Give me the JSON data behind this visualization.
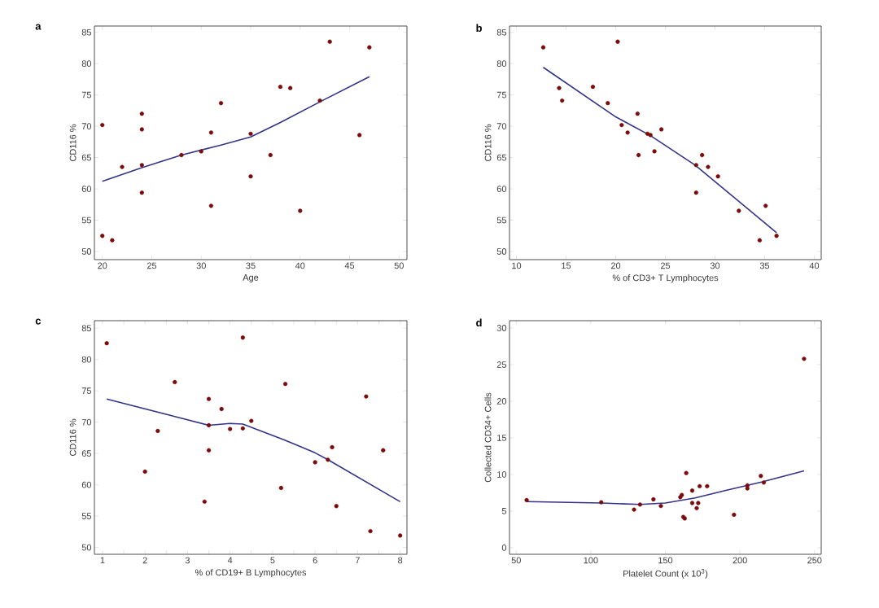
{
  "chart_data": [
    {
      "type": "scatter",
      "title": "a",
      "xlabel": "Age",
      "ylabel": "CD116 %",
      "xlim": [
        19.2,
        50.8
      ],
      "ylim": [
        48.7,
        86
      ],
      "xticks": [
        20,
        25,
        30,
        35,
        40,
        45,
        50
      ],
      "yticks": [
        50,
        55,
        60,
        65,
        70,
        75,
        80,
        85
      ],
      "marker": "circle",
      "series": [
        {
          "color": "#7a0c0c",
          "x": [
            20,
            20,
            21,
            22,
            24,
            24,
            24,
            24,
            28,
            30,
            31,
            31,
            32,
            35,
            35,
            37,
            38,
            39,
            40,
            42,
            43,
            46,
            47
          ],
          "values": [
            70.2,
            52.5,
            51.8,
            63.5,
            72,
            69.5,
            63.8,
            59.4,
            65.4,
            66,
            69,
            57.3,
            73.7,
            68.8,
            62,
            65.4,
            76.3,
            76.1,
            56.5,
            74.1,
            83.5,
            68.6,
            82.6
          ]
        },
        {
          "type": "line",
          "marker": "none",
          "color": "#33338a",
          "x": [
            20,
            24,
            28,
            32,
            35,
            38,
            42,
            47
          ],
          "values": [
            61.2,
            63.4,
            65.4,
            67,
            68.3,
            70.6,
            73.9,
            77.9
          ]
        }
      ]
    },
    {
      "type": "scatter",
      "title": "b",
      "xlabel": "% of CD3+ T Lymphocytes",
      "ylabel": "CD116 %",
      "xlim": [
        9.3,
        40.7
      ],
      "ylim": [
        48.7,
        86
      ],
      "xticks": [
        10,
        15,
        20,
        25,
        30,
        35,
        40
      ],
      "yticks": [
        50,
        55,
        60,
        65,
        70,
        75,
        80,
        85
      ],
      "marker": "circle",
      "series": [
        {
          "color": "#7a0c0c",
          "x": [
            12.7,
            14.3,
            14.6,
            17.7,
            19.2,
            20.2,
            20.6,
            21.2,
            22.2,
            22.3,
            23.2,
            23.5,
            23.9,
            24.6,
            28.1,
            28.1,
            28.7,
            29.3,
            30.3,
            32.4,
            34.5,
            35.1,
            36.2
          ],
          "values": [
            82.6,
            76.1,
            74.1,
            76.3,
            73.7,
            83.5,
            70.2,
            69,
            72,
            65.4,
            68.8,
            68.6,
            66,
            69.5,
            63.8,
            59.4,
            65.4,
            63.5,
            62,
            56.5,
            51.8,
            57.3,
            52.5
          ]
        },
        {
          "type": "line",
          "marker": "none",
          "color": "#33338a",
          "x": [
            12.7,
            20,
            23.5,
            28,
            36.2
          ],
          "values": [
            79.4,
            71.5,
            68.5,
            63.8,
            53
          ]
        }
      ]
    },
    {
      "type": "scatter",
      "title": "c",
      "xlabel": "% of CD19+ B Lymphocytes",
      "ylabel": "CD116 %",
      "xlim": [
        0.81,
        8.16
      ],
      "ylim": [
        48.9,
        86.2
      ],
      "xticks": [
        1,
        {
          "value": 1.5,
          "label": null
        },
        2,
        {
          "value": 2.5,
          "label": null
        },
        3,
        {
          "value": 3.5,
          "label": null
        },
        4,
        {
          "value": 4.5,
          "label": null
        },
        5,
        {
          "value": 5.5,
          "label": null
        },
        6,
        {
          "value": 6.5,
          "label": null
        },
        7,
        {
          "value": 7.5,
          "label": null
        },
        8
      ],
      "yticks": [
        50,
        55,
        60,
        65,
        70,
        75,
        80,
        85
      ],
      "marker": "circle",
      "series": [
        {
          "color": "#7a0c0c",
          "x": [
            1.1,
            2.0,
            2.3,
            2.7,
            3.4,
            3.5,
            3.5,
            3.5,
            3.8,
            4.0,
            4.3,
            4.3,
            4.5,
            5.2,
            5.3,
            6.0,
            6.3,
            6.4,
            6.5,
            7.2,
            7.3,
            7.6,
            8.0
          ],
          "values": [
            82.6,
            62.1,
            68.6,
            76.4,
            57.3,
            73.7,
            65.5,
            69.5,
            72.1,
            68.9,
            83.5,
            69,
            70.2,
            59.5,
            76.1,
            63.6,
            64,
            66,
            56.6,
            74.1,
            52.6,
            65.5,
            51.9
          ]
        },
        {
          "type": "line",
          "marker": "none",
          "color": "#33338a",
          "x": [
            1.1,
            2.7,
            3.5,
            4.0,
            4.3,
            5.3,
            6.0,
            6.3,
            8.0
          ],
          "values": [
            73.7,
            70.9,
            69.5,
            69.8,
            69.7,
            67.1,
            65.1,
            64,
            57.3
          ]
        }
      ]
    },
    {
      "type": "scatter",
      "title": "d",
      "xlabel": "Platelet Count (x 10$^{3}$)",
      "ylabel": "Collected CD34+ Cells",
      "xlim": [
        45.5,
        254.5
      ],
      "ylim": [
        -0.9,
        31
      ],
      "xticks": [
        50,
        100,
        150,
        200,
        250
      ],
      "yticks": [
        0,
        5,
        10,
        15,
        20,
        25,
        30
      ],
      "marker": "circle",
      "series": [
        {
          "color": "#7a0c0c",
          "x": [
            57,
            107,
            129,
            133,
            142,
            147,
            160,
            161,
            162,
            163,
            164,
            168,
            168,
            171,
            172,
            173,
            178,
            196,
            205,
            205,
            214,
            216,
            243
          ],
          "values": [
            6.5,
            6.2,
            5.2,
            5.9,
            6.6,
            5.7,
            6.9,
            7.2,
            4.2,
            4.0,
            10.2,
            7.8,
            6.1,
            5.4,
            6.1,
            8.4,
            8.4,
            4.5,
            8.5,
            8.1,
            9.8,
            8.9,
            25.8
          ]
        },
        {
          "type": "line",
          "marker": "none",
          "color": "#33338a",
          "x": [
            57,
            107,
            133,
            150,
            170,
            190,
            215,
            243
          ],
          "values": [
            6.3,
            6.1,
            5.9,
            6.1,
            6.8,
            7.8,
            9.0,
            10.5
          ]
        }
      ]
    }
  ]
}
